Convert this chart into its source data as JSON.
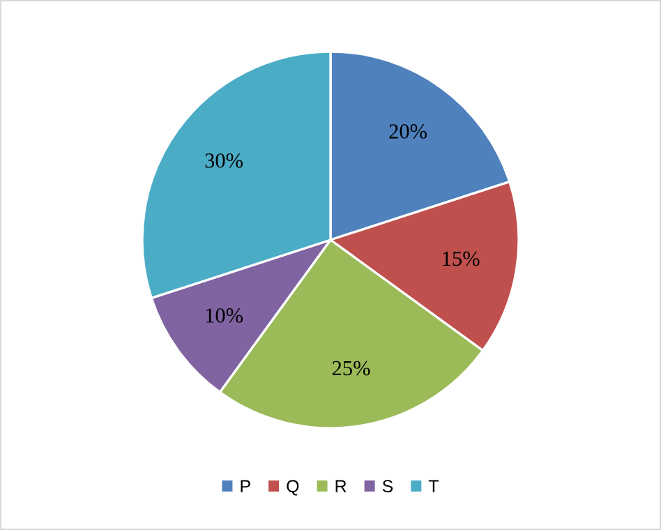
{
  "chart_data": {
    "type": "pie",
    "categories": [
      "P",
      "Q",
      "R",
      "S",
      "T"
    ],
    "values": [
      20,
      15,
      25,
      10,
      30
    ],
    "colors": [
      "#4f81bd",
      "#c0504d",
      "#9bbb59",
      "#8064a2",
      "#4bacc6"
    ],
    "value_labels": [
      "20%",
      "15%",
      "25%",
      "10%",
      "30%"
    ],
    "legend": "bottom"
  }
}
